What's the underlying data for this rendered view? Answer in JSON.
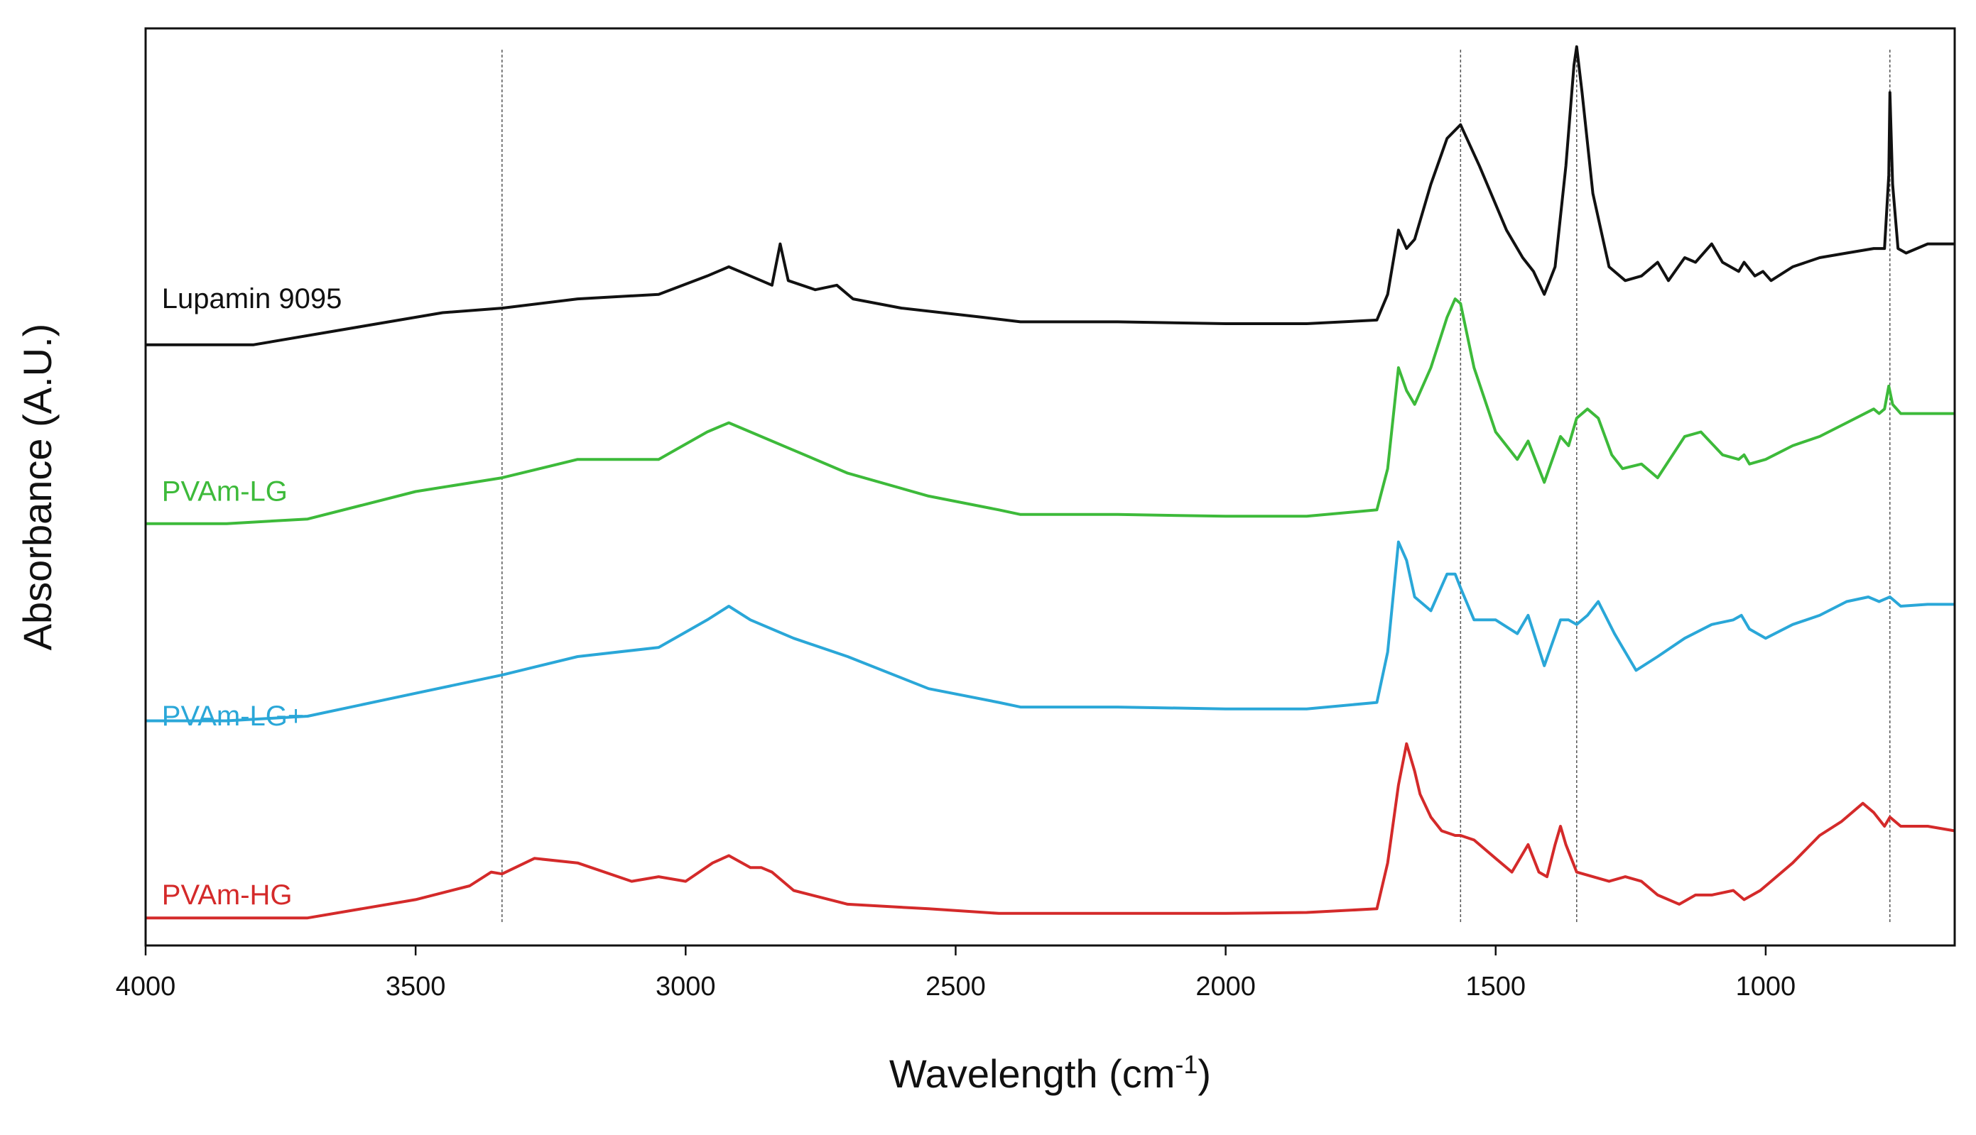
{
  "chart_data": {
    "type": "line",
    "title": "",
    "xlabel": "Wavelength (cm",
    "xlabel_sup": "-1",
    "xlabel_close": ")",
    "ylabel": "Absorbance (A.U.)",
    "xlim": [
      4000,
      650
    ],
    "ylim": [
      0,
      10
    ],
    "x_reversed": true,
    "y_ticks_shown": false,
    "xticks": [
      {
        "value": 4000,
        "label": "4000"
      },
      {
        "value": 3500,
        "label": "3500"
      },
      {
        "value": 3000,
        "label": "3000"
      },
      {
        "value": 2500,
        "label": "2500"
      },
      {
        "value": 2000,
        "label": "2000"
      },
      {
        "value": 1500,
        "label": "1500"
      },
      {
        "value": 1000,
        "label": "1000"
      }
    ],
    "reference_lines": [
      3340,
      1565,
      1350,
      770
    ],
    "series": [
      {
        "name": "Lupamin 9095",
        "color": "#111111",
        "label_x": 3970,
        "label_y": 6.95,
        "x": [
          4000,
          3800,
          3600,
          3450,
          3340,
          3200,
          3050,
          2960,
          2920,
          2880,
          2840,
          2825,
          2810,
          2760,
          2720,
          2690,
          2600,
          2450,
          2380,
          2200,
          2000,
          1850,
          1720,
          1700,
          1680,
          1665,
          1650,
          1620,
          1590,
          1565,
          1530,
          1480,
          1450,
          1430,
          1410,
          1390,
          1370,
          1355,
          1350,
          1340,
          1320,
          1290,
          1260,
          1230,
          1200,
          1180,
          1150,
          1130,
          1100,
          1080,
          1050,
          1040,
          1020,
          1005,
          990,
          950,
          900,
          850,
          800,
          780,
          772,
          770,
          765,
          755,
          740,
          700,
          650
        ],
        "y": [
          6.55,
          6.55,
          6.75,
          6.9,
          6.95,
          7.05,
          7.1,
          7.3,
          7.4,
          7.3,
          7.2,
          7.65,
          7.25,
          7.15,
          7.2,
          7.05,
          6.95,
          6.85,
          6.8,
          6.8,
          6.78,
          6.78,
          6.82,
          7.1,
          7.8,
          7.6,
          7.7,
          8.3,
          8.8,
          8.95,
          8.5,
          7.8,
          7.5,
          7.35,
          7.1,
          7.4,
          8.5,
          9.6,
          9.8,
          9.3,
          8.2,
          7.4,
          7.25,
          7.3,
          7.45,
          7.25,
          7.5,
          7.45,
          7.65,
          7.45,
          7.35,
          7.45,
          7.3,
          7.35,
          7.25,
          7.4,
          7.5,
          7.55,
          7.6,
          7.6,
          8.4,
          9.3,
          8.3,
          7.6,
          7.55,
          7.65,
          7.65
        ]
      },
      {
        "name": "PVAm-LG",
        "color": "#3dba3a",
        "label_x": 3970,
        "label_y": 4.85,
        "x": [
          4000,
          3850,
          3700,
          3500,
          3340,
          3200,
          3050,
          2960,
          2920,
          2880,
          2800,
          2700,
          2550,
          2420,
          2380,
          2200,
          2000,
          1850,
          1720,
          1700,
          1680,
          1665,
          1650,
          1620,
          1590,
          1575,
          1565,
          1540,
          1500,
          1460,
          1440,
          1410,
          1380,
          1365,
          1350,
          1330,
          1310,
          1285,
          1265,
          1230,
          1200,
          1150,
          1120,
          1080,
          1050,
          1040,
          1030,
          1000,
          950,
          900,
          850,
          800,
          790,
          780,
          772,
          765,
          750,
          700,
          650
        ],
        "y": [
          4.6,
          4.6,
          4.65,
          4.95,
          5.1,
          5.3,
          5.3,
          5.6,
          5.7,
          5.6,
          5.4,
          5.15,
          4.9,
          4.75,
          4.7,
          4.7,
          4.68,
          4.68,
          4.75,
          5.2,
          6.3,
          6.05,
          5.9,
          6.3,
          6.85,
          7.05,
          7.0,
          6.3,
          5.6,
          5.3,
          5.5,
          5.05,
          5.55,
          5.45,
          5.75,
          5.85,
          5.75,
          5.35,
          5.2,
          5.25,
          5.1,
          5.55,
          5.6,
          5.35,
          5.3,
          5.35,
          5.25,
          5.3,
          5.45,
          5.55,
          5.7,
          5.85,
          5.8,
          5.85,
          6.1,
          5.9,
          5.8,
          5.8,
          5.8
        ]
      },
      {
        "name": "PVAm-LG+",
        "color": "#2aa7d8",
        "label_x": 3970,
        "label_y": 2.4,
        "x": [
          4000,
          3850,
          3700,
          3500,
          3340,
          3200,
          3050,
          2960,
          2920,
          2880,
          2800,
          2700,
          2550,
          2420,
          2380,
          2200,
          2000,
          1850,
          1720,
          1700,
          1680,
          1665,
          1650,
          1620,
          1590,
          1575,
          1565,
          1540,
          1500,
          1460,
          1440,
          1410,
          1380,
          1365,
          1350,
          1330,
          1310,
          1280,
          1240,
          1200,
          1150,
          1100,
          1060,
          1045,
          1030,
          1000,
          950,
          900,
          850,
          810,
          790,
          770,
          750,
          700,
          650
        ],
        "y": [
          2.45,
          2.45,
          2.5,
          2.75,
          2.95,
          3.15,
          3.25,
          3.55,
          3.7,
          3.55,
          3.35,
          3.15,
          2.8,
          2.65,
          2.6,
          2.6,
          2.58,
          2.58,
          2.65,
          3.2,
          4.4,
          4.2,
          3.8,
          3.65,
          4.05,
          4.05,
          3.9,
          3.55,
          3.55,
          3.4,
          3.6,
          3.05,
          3.55,
          3.55,
          3.5,
          3.6,
          3.75,
          3.4,
          3.0,
          3.15,
          3.35,
          3.5,
          3.55,
          3.6,
          3.45,
          3.35,
          3.5,
          3.6,
          3.75,
          3.8,
          3.75,
          3.8,
          3.7,
          3.72,
          3.72
        ]
      },
      {
        "name": "PVAm-HG",
        "color": "#d42a2a",
        "label_x": 3970,
        "label_y": 0.45,
        "x": [
          4000,
          3850,
          3700,
          3500,
          3400,
          3360,
          3340,
          3280,
          3200,
          3100,
          3050,
          3000,
          2950,
          2920,
          2880,
          2860,
          2840,
          2800,
          2700,
          2550,
          2420,
          2380,
          2200,
          2000,
          1850,
          1720,
          1700,
          1680,
          1665,
          1650,
          1640,
          1620,
          1600,
          1575,
          1565,
          1540,
          1500,
          1470,
          1440,
          1420,
          1405,
          1390,
          1380,
          1370,
          1350,
          1320,
          1290,
          1260,
          1230,
          1200,
          1160,
          1130,
          1100,
          1060,
          1040,
          1010,
          990,
          950,
          900,
          860,
          820,
          800,
          780,
          770,
          750,
          700,
          650
        ],
        "y": [
          0.3,
          0.3,
          0.3,
          0.5,
          0.65,
          0.8,
          0.78,
          0.95,
          0.9,
          0.7,
          0.75,
          0.7,
          0.9,
          0.98,
          0.85,
          0.85,
          0.8,
          0.6,
          0.45,
          0.4,
          0.35,
          0.35,
          0.35,
          0.35,
          0.36,
          0.4,
          0.9,
          1.75,
          2.2,
          1.9,
          1.65,
          1.4,
          1.25,
          1.2,
          1.2,
          1.15,
          0.95,
          0.8,
          1.1,
          0.8,
          0.75,
          1.1,
          1.3,
          1.1,
          0.8,
          0.75,
          0.7,
          0.75,
          0.7,
          0.55,
          0.45,
          0.55,
          0.55,
          0.6,
          0.5,
          0.6,
          0.7,
          0.9,
          1.2,
          1.35,
          1.55,
          1.45,
          1.3,
          1.4,
          1.3,
          1.3,
          1.25
        ]
      }
    ]
  }
}
